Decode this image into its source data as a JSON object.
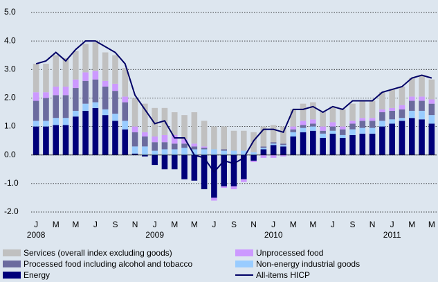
{
  "chart_data": {
    "type": "bar",
    "stacked": true,
    "categories": [
      "J",
      null,
      "M",
      null,
      "M",
      null,
      "J",
      null,
      "S",
      null,
      "N",
      null,
      "J",
      null,
      "M",
      null,
      "M",
      null,
      "J",
      null,
      "S",
      null,
      "N",
      null,
      "J",
      null,
      "M",
      null,
      "M",
      null,
      "J",
      null,
      "S",
      null,
      "N",
      null,
      "J",
      null,
      "M",
      null,
      "M"
    ],
    "category_groups": [
      "2008",
      null,
      null,
      null,
      null,
      null,
      null,
      null,
      null,
      null,
      null,
      null,
      "2009",
      null,
      null,
      null,
      null,
      null,
      null,
      null,
      null,
      null,
      null,
      null,
      "2010",
      null,
      null,
      null,
      null,
      null,
      null,
      null,
      null,
      null,
      null,
      null,
      "2011",
      null,
      null,
      null,
      null
    ],
    "series": [
      {
        "name": "Energy",
        "color": "#00007a",
        "values": [
          1.0,
          1.0,
          1.05,
          1.05,
          1.35,
          1.55,
          1.65,
          1.4,
          1.2,
          0.9,
          0.05,
          -0.05,
          -0.35,
          -0.5,
          -0.5,
          -0.85,
          -0.9,
          -1.2,
          -1.5,
          -1.1,
          -1.1,
          -0.85,
          -0.2,
          0.2,
          0.35,
          0.3,
          0.65,
          0.8,
          0.85,
          0.6,
          0.75,
          0.6,
          0.7,
          0.75,
          0.75,
          1.0,
          1.1,
          1.2,
          1.3,
          1.25,
          1.1
        ]
      },
      {
        "name": "Non-energy industrial goods",
        "color": "#99ccff",
        "values": [
          0.2,
          0.2,
          0.25,
          0.25,
          0.2,
          0.25,
          0.2,
          0.2,
          0.25,
          0.3,
          0.25,
          0.3,
          0.15,
          0.2,
          0.2,
          0.25,
          0.2,
          0.2,
          0.2,
          0.15,
          0.15,
          0.15,
          0.1,
          0.05,
          0.05,
          0.05,
          0.15,
          0.15,
          0.15,
          0.15,
          0.1,
          0.1,
          0.2,
          0.2,
          0.2,
          0.2,
          0.15,
          0.1,
          0.25,
          0.3,
          0.3
        ]
      },
      {
        "name": "Processed food including alcohol and tobacco",
        "color": "#6b6b9e",
        "values": [
          0.7,
          0.8,
          0.8,
          0.8,
          0.8,
          0.8,
          0.8,
          0.8,
          0.8,
          0.65,
          0.5,
          0.35,
          0.3,
          0.25,
          0.2,
          0.15,
          0.1,
          0.05,
          0.0,
          0.05,
          0.0,
          0.0,
          0.0,
          0.05,
          0.05,
          0.05,
          0.1,
          0.1,
          0.1,
          0.1,
          0.15,
          0.2,
          0.2,
          0.25,
          0.25,
          0.3,
          0.3,
          0.3,
          0.35,
          0.35,
          0.4
        ]
      },
      {
        "name": "Unprocessed food",
        "color": "#cc99ff",
        "values": [
          0.3,
          0.2,
          0.3,
          0.3,
          0.3,
          0.3,
          0.3,
          0.2,
          0.25,
          0.2,
          0.2,
          0.15,
          0.2,
          0.25,
          0.3,
          0.15,
          0.1,
          0.05,
          -0.1,
          -0.05,
          -0.1,
          -0.1,
          -0.05,
          -0.1,
          -0.1,
          -0.05,
          0.1,
          0.15,
          0.15,
          0.15,
          0.15,
          0.1,
          0.1,
          0.1,
          0.1,
          0.1,
          0.1,
          0.15,
          0.15,
          0.15,
          0.15
        ]
      },
      {
        "name": "Services (overall index excluding goods)",
        "color": "#c0c0c0",
        "values": [
          1.0,
          1.0,
          1.1,
          1.0,
          1.0,
          1.0,
          1.0,
          1.0,
          1.0,
          1.0,
          1.0,
          1.0,
          1.0,
          0.95,
          0.8,
          0.85,
          1.1,
          0.9,
          0.8,
          0.8,
          0.7,
          0.7,
          0.7,
          0.7,
          0.6,
          0.6,
          0.6,
          0.6,
          0.6,
          0.5,
          0.55,
          0.6,
          0.6,
          0.6,
          0.6,
          0.6,
          0.65,
          0.65,
          0.65,
          0.75,
          0.7
        ]
      },
      {
        "name": "All-items HICP",
        "type": "line",
        "color": "#000066",
        "values": [
          3.2,
          3.3,
          3.6,
          3.3,
          3.7,
          4.0,
          4.0,
          3.8,
          3.6,
          3.2,
          2.1,
          1.6,
          1.1,
          1.2,
          0.6,
          0.6,
          0.0,
          -0.1,
          -0.6,
          -0.2,
          -0.3,
          -0.1,
          0.5,
          0.9,
          0.9,
          0.8,
          1.6,
          1.6,
          1.7,
          1.5,
          1.7,
          1.6,
          1.9,
          1.9,
          1.9,
          2.2,
          2.3,
          2.4,
          2.7,
          2.8,
          2.7
        ]
      }
    ],
    "ylim": [
      -2,
      5
    ],
    "yticks": [
      {
        "value": -2,
        "label": "-2.0"
      },
      {
        "value": -1,
        "label": "-1.0"
      },
      {
        "value": 0,
        "label": "0.0"
      },
      {
        "value": 1,
        "label": "1.0"
      },
      {
        "value": 2,
        "label": "2.0"
      },
      {
        "value": 3,
        "label": "3.0"
      },
      {
        "value": 4,
        "label": "4.0"
      },
      {
        "value": 5,
        "label": "5.0"
      }
    ],
    "grid": true
  }
}
